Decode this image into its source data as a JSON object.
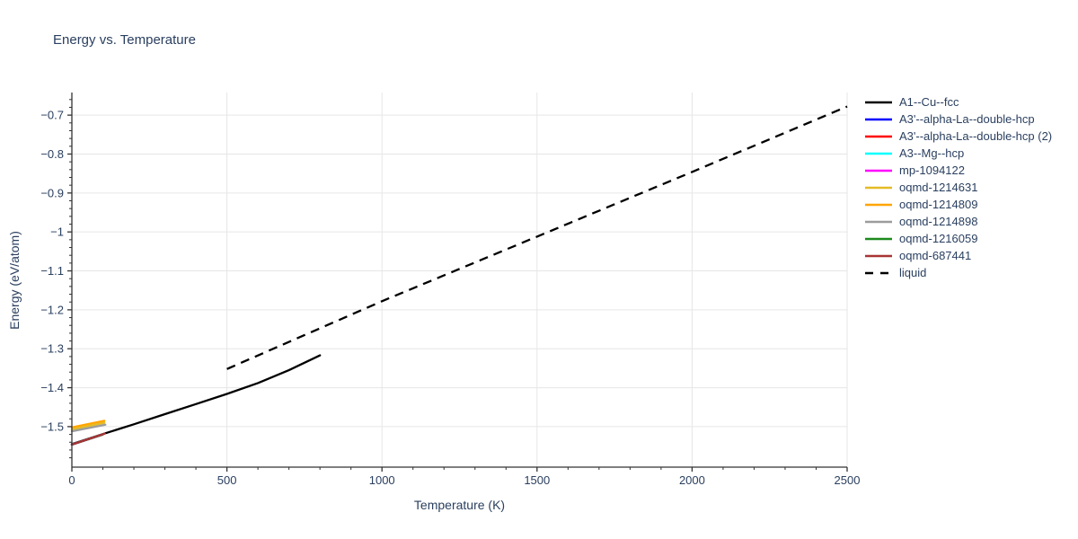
{
  "chart_data": {
    "type": "line",
    "title": "Energy vs. Temperature",
    "xlabel": "Temperature (K)",
    "ylabel": "Energy (eV/atom)",
    "xlim": [
      0,
      2500
    ],
    "ylim": [
      -1.604,
      -0.642
    ],
    "grid": true,
    "legend_position": "right",
    "x_ticks": [
      0,
      500,
      1000,
      1500,
      2000,
      2500
    ],
    "x_tick_labels": [
      "0",
      "500",
      "1000",
      "1500",
      "2000",
      "2500"
    ],
    "x_minor_step": 100,
    "y_ticks": [
      -0.7,
      -0.8,
      -0.9,
      -1,
      -1.1,
      -1.2,
      -1.3,
      -1.4,
      -1.5
    ],
    "y_tick_labels": [
      "−0.7",
      "−0.8",
      "−0.9",
      "−1",
      "−1.1",
      "−1.2",
      "−1.3",
      "−1.4",
      "−1.5"
    ],
    "y_minor_step": 0.02,
    "colors": {
      "text": "#2a3f5f",
      "grid": "#e6e6e6",
      "axis": "#333333"
    },
    "series": [
      {
        "name": "A1--Cu--fcc",
        "color": "#000000",
        "dash": "solid",
        "points": [
          [
            0,
            -1.545
          ],
          [
            100,
            -1.519
          ],
          [
            200,
            -1.494
          ],
          [
            300,
            -1.468
          ],
          [
            400,
            -1.442
          ],
          [
            500,
            -1.416
          ],
          [
            600,
            -1.388
          ],
          [
            700,
            -1.355
          ],
          [
            800,
            -1.317
          ]
        ]
      },
      {
        "name": "A3'--alpha-La--double-hcp",
        "color": "#0000ff",
        "dash": "solid",
        "points": [
          [
            0,
            -1.546
          ],
          [
            100,
            -1.52
          ]
        ]
      },
      {
        "name": "A3'--alpha-La--double-hcp (2)",
        "color": "#ff0000",
        "dash": "solid",
        "points": [
          [
            0,
            -1.546
          ],
          [
            100,
            -1.52
          ]
        ]
      },
      {
        "name": "A3--Mg--hcp",
        "color": "#00ffff",
        "dash": "solid",
        "points": [
          [
            0,
            -1.546
          ],
          [
            100,
            -1.52
          ]
        ]
      },
      {
        "name": "mp-1094122",
        "color": "#ff00ff",
        "dash": "solid",
        "points": [
          [
            0,
            -1.546
          ],
          [
            100,
            -1.52
          ]
        ]
      },
      {
        "name": "oqmd-1214631",
        "color": "#e4bb24",
        "dash": "solid",
        "points": [
          [
            0,
            -1.507
          ],
          [
            105,
            -1.49
          ]
        ]
      },
      {
        "name": "oqmd-1214809",
        "color": "#ffa500",
        "dash": "solid",
        "points": [
          [
            0,
            -1.502
          ],
          [
            105,
            -1.485
          ]
        ]
      },
      {
        "name": "oqmd-1214898",
        "color": "#9c9c9c",
        "dash": "solid",
        "points": [
          [
            0,
            -1.512
          ],
          [
            108,
            -1.495
          ]
        ]
      },
      {
        "name": "oqmd-1216059",
        "color": "#1c8a1c",
        "dash": "solid",
        "points": [
          [
            0,
            -1.546
          ],
          [
            100,
            -1.52
          ]
        ]
      },
      {
        "name": "oqmd-687441",
        "color": "#a83434",
        "dash": "solid",
        "points": [
          [
            0,
            -1.546
          ],
          [
            106,
            -1.518
          ]
        ]
      },
      {
        "name": "liquid",
        "color": "#000000",
        "dash": "dashed",
        "points": [
          [
            500,
            -1.352
          ],
          [
            1000,
            -1.178
          ],
          [
            1500,
            -1.012
          ],
          [
            2000,
            -0.846
          ],
          [
            2500,
            -0.678
          ]
        ]
      }
    ]
  }
}
